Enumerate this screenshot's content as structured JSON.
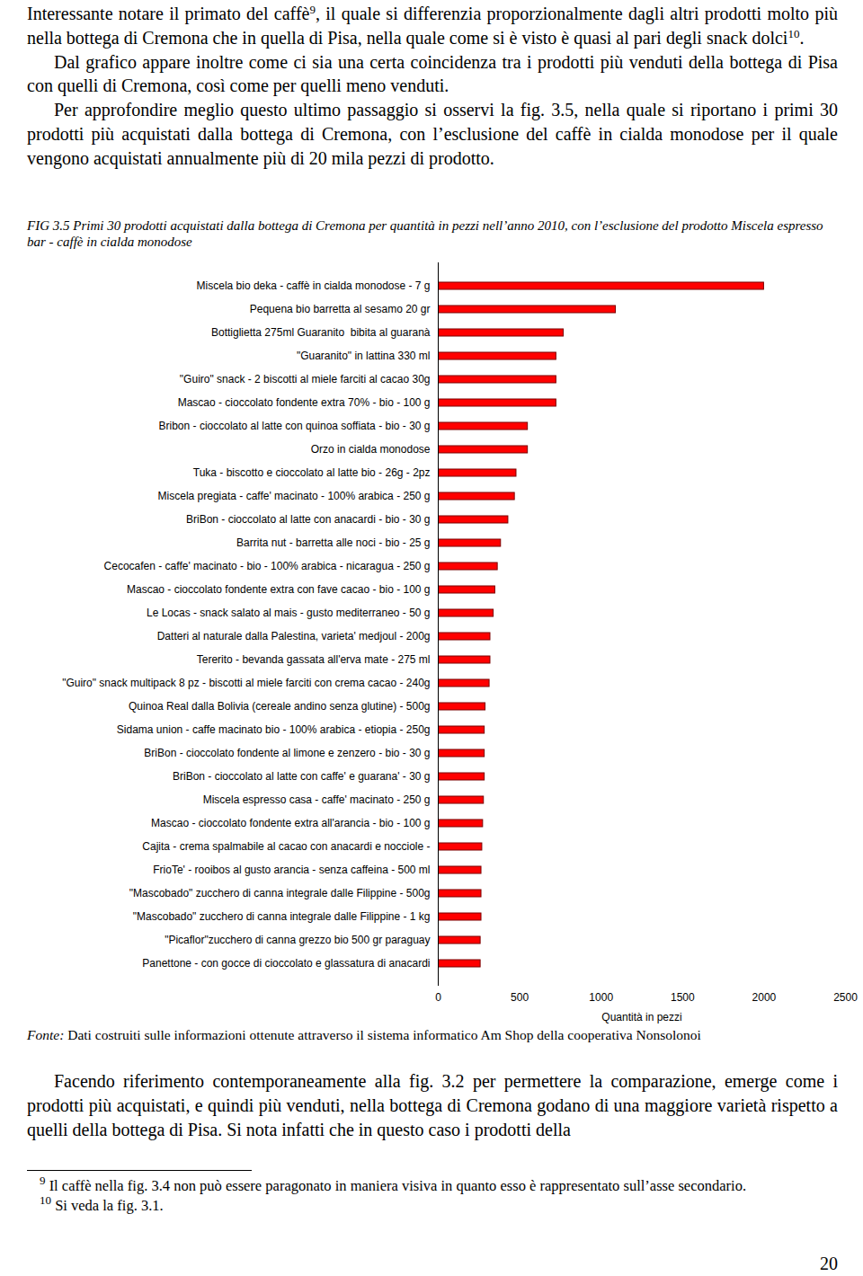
{
  "page": {
    "top_paragraphs": [
      [
        {
          "text": "Interessante notare il primato del caffè"
        },
        {
          "sup": "9"
        },
        {
          "text": ", il quale si differenzia proporzionalmente dagli altri prodotti molto più nella bottega di Cremona che in quella di Pisa, nella quale come si è visto è quasi al pari degli snack dolci"
        },
        {
          "sup": "10"
        },
        {
          "text": "."
        }
      ],
      [
        {
          "text": "Dal grafico appare inoltre come ci sia una certa coincidenza tra i prodotti più venduti della bottega di Pisa con quelli di Cremona, così come per quelli meno venduti."
        }
      ],
      [
        {
          "text": "Per approfondire meglio questo ultimo passaggio si osservi la fig. 3.5, nella quale si riportano i primi 30 prodotti più acquistati dalla bottega di Cremona, con l’esclusione del caffè in cialda monodose per il quale vengono acquistati annualmente più di 20 mila pezzi di prodotto."
        }
      ]
    ],
    "source_label": "Fonte:",
    "source_text": "Dati costruiti sulle informazioni ottenute attraverso il sistema informatico Am Shop della cooperativa Nonsolonoi",
    "bottom_paragraph": "Facendo riferimento contemporaneamente alla fig. 3.2 per permettere la comparazione, emerge come i prodotti più acquistati, e quindi più venduti, nella bottega di Cremona godano di una maggiore varietà rispetto a quelli della bottega di Pisa. Si nota infatti che in questo caso i prodotti della",
    "footnotes": [
      {
        "mark": "9",
        "text": "Il caffè nella fig. 3.4 non può essere paragonato in maniera visiva in quanto esso è rappresentato sull’asse secondario."
      },
      {
        "mark": "10",
        "text": "Si veda la fig. 3.1."
      }
    ],
    "page_number": 20
  },
  "chart_data": {
    "type": "bar",
    "orientation": "horizontal",
    "title": "FIG 3.5 Primi 30 prodotti acquistati dalla bottega di Cremona per quantità in pezzi nell’anno 2010, con l’esclusione del prodotto Miscela espresso bar - caffè in cialda monodose",
    "x_label": "Quantità in pezzi",
    "categories": [
      "Miscela bio deka - caffè in cialda monodose - 7 g",
      "Pequena bio barretta al sesamo 20 gr",
      "Bottiglietta 275ml Guaranito  bibita al guaranà",
      "\"Guaranito\" in lattina 330 ml",
      "\"Guiro\" snack - 2 biscotti al miele farciti al cacao 30g",
      "Mascao - cioccolato fondente extra 70% - bio - 100 g",
      "Bribon - cioccolato al latte con quinoa soffiata - bio - 30 g",
      "Orzo in cialda monodose",
      "Tuka - biscotto e cioccolato al latte bio - 26g - 2pz",
      "Miscela pregiata - caffe' macinato - 100% arabica - 250 g",
      "BriBon - cioccolato al latte con anacardi - bio - 30 g",
      "Barrita nut - barretta alle noci - bio - 25 g",
      "Cecocafen - caffe' macinato - bio - 100% arabica - nicaragua - 250 g",
      "Mascao - cioccolato fondente extra con fave cacao - bio - 100 g",
      "Le Locas - snack salato al mais - gusto mediterraneo - 50 g",
      "Datteri al naturale dalla Palestina, varieta' medjoul - 200g",
      "Tererito - bevanda gassata all'erva mate - 275 ml",
      "\"Guiro\" snack multipack 8 pz - biscotti al miele farciti con crema cacao - 240g",
      "Quinoa Real dalla Bolivia (cereale andino senza glutine) - 500g",
      "Sidama union - caffe macinato bio - 100% arabica - etiopia - 250g",
      "BriBon - cioccolato fondente al limone e zenzero - bio - 30 g",
      "BriBon - cioccolato al latte con caffe' e guarana' - 30 g",
      "Miscela espresso casa - caffe' macinato - 250 g",
      "Mascao - cioccolato fondente extra all'arancia - bio - 100 g",
      "Cajita - crema spalmabile al cacao con anacardi e nocciole -",
      "FrioTe' - rooibos al gusto arancia - senza caffeina - 500 ml",
      "\"Mascobado\" zucchero di canna integrale dalle Filippine - 500g",
      "\"Mascobado\" zucchero di canna integrale dalle Filippine - 1 kg",
      "\"Picaflor\"zucchero di canna grezzo bio 500 gr paraguay",
      "Panettone - con gocce di cioccolato e glassatura di anacardi"
    ],
    "values": [
      2000,
      1090,
      770,
      725,
      725,
      725,
      550,
      550,
      480,
      470,
      430,
      385,
      365,
      350,
      340,
      320,
      320,
      315,
      290,
      285,
      285,
      285,
      280,
      275,
      270,
      265,
      265,
      265,
      260,
      260
    ],
    "color": "#ff0000",
    "xlim": [
      0,
      2500
    ],
    "xticks": [
      0,
      500,
      1000,
      1500,
      2000,
      2500
    ],
    "grid": false
  }
}
